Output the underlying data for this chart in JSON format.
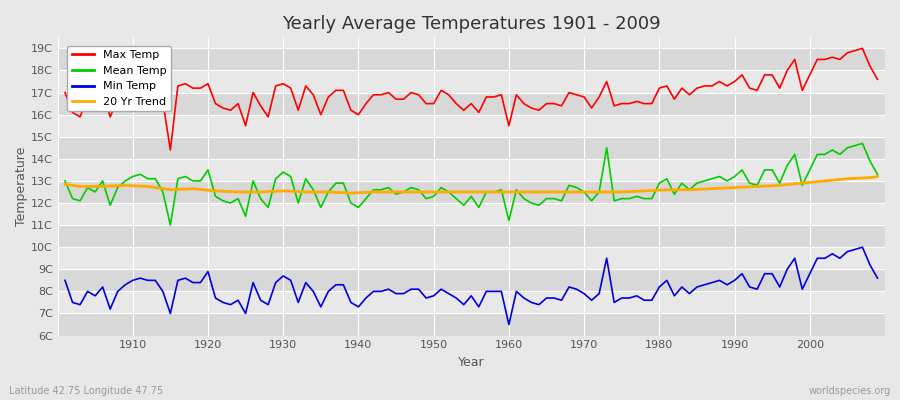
{
  "title": "Yearly Average Temperatures 1901 - 2009",
  "xlabel": "Year",
  "ylabel": "Temperature",
  "bottom_left_text": "Latitude 42.75 Longitude 47.75",
  "bottom_right_text": "worldspecies.org",
  "ylim": [
    6,
    19.5
  ],
  "yticks": [
    "6C",
    "7C",
    "8C",
    "9C",
    "10C",
    "11C",
    "12C",
    "13C",
    "14C",
    "15C",
    "16C",
    "17C",
    "18C",
    "19C"
  ],
  "ytick_vals": [
    6,
    7,
    8,
    9,
    10,
    11,
    12,
    13,
    14,
    15,
    16,
    17,
    18,
    19
  ],
  "xlim": [
    1900,
    2010
  ],
  "bg_color": "#e8e8e8",
  "plot_bg_outer": "#e8e8e8",
  "grid_color": "#ffffff",
  "band_colors": [
    "#d8d8d8",
    "#e8e8e8"
  ],
  "colors": {
    "max": "#ff0000",
    "mean": "#00cc00",
    "min": "#0000dd",
    "trend": "#ffaa00"
  },
  "legend": [
    {
      "label": "Max Temp",
      "color": "#ff0000"
    },
    {
      "label": "Mean Temp",
      "color": "#00cc00"
    },
    {
      "label": "Min Temp",
      "color": "#0000dd"
    },
    {
      "label": "20 Yr Trend",
      "color": "#ffaa00"
    }
  ],
  "years": [
    1901,
    1902,
    1903,
    1904,
    1905,
    1906,
    1907,
    1908,
    1909,
    1910,
    1911,
    1912,
    1913,
    1914,
    1915,
    1916,
    1917,
    1918,
    1919,
    1920,
    1921,
    1922,
    1923,
    1924,
    1925,
    1926,
    1927,
    1928,
    1929,
    1930,
    1931,
    1932,
    1933,
    1934,
    1935,
    1936,
    1937,
    1938,
    1939,
    1940,
    1941,
    1942,
    1943,
    1944,
    1945,
    1946,
    1947,
    1948,
    1949,
    1950,
    1951,
    1952,
    1953,
    1954,
    1955,
    1956,
    1957,
    1958,
    1959,
    1960,
    1961,
    1962,
    1963,
    1964,
    1965,
    1966,
    1967,
    1968,
    1969,
    1970,
    1971,
    1972,
    1973,
    1974,
    1975,
    1976,
    1977,
    1978,
    1979,
    1980,
    1981,
    1982,
    1983,
    1984,
    1985,
    1986,
    1987,
    1988,
    1989,
    1990,
    1991,
    1992,
    1993,
    1994,
    1995,
    1996,
    1997,
    1998,
    1999,
    2000,
    2001,
    2002,
    2003,
    2004,
    2005,
    2006,
    2007,
    2008,
    2009
  ],
  "max_temp": [
    17.0,
    16.1,
    15.9,
    16.8,
    16.6,
    17.0,
    15.9,
    16.7,
    17.2,
    17.4,
    17.5,
    17.2,
    17.2,
    16.6,
    14.4,
    17.3,
    17.4,
    17.2,
    17.2,
    17.4,
    16.5,
    16.3,
    16.2,
    16.5,
    15.5,
    17.0,
    16.4,
    15.9,
    17.3,
    17.4,
    17.2,
    16.2,
    17.3,
    16.9,
    16.0,
    16.8,
    17.1,
    17.1,
    16.2,
    16.0,
    16.5,
    16.9,
    16.9,
    17.0,
    16.7,
    16.7,
    17.0,
    16.9,
    16.5,
    16.5,
    17.1,
    16.9,
    16.5,
    16.2,
    16.5,
    16.1,
    16.8,
    16.8,
    16.9,
    15.5,
    16.9,
    16.5,
    16.3,
    16.2,
    16.5,
    16.5,
    16.4,
    17.0,
    16.9,
    16.8,
    16.3,
    16.8,
    17.5,
    16.4,
    16.5,
    16.5,
    16.6,
    16.5,
    16.5,
    17.2,
    17.3,
    16.7,
    17.2,
    16.9,
    17.2,
    17.3,
    17.3,
    17.5,
    17.3,
    17.5,
    17.8,
    17.2,
    17.1,
    17.8,
    17.8,
    17.2,
    18.0,
    18.5,
    17.1,
    17.8,
    18.5,
    18.5,
    18.6,
    18.5,
    18.8,
    18.9,
    19.0,
    18.2,
    17.6
  ],
  "mean_temp": [
    13.0,
    12.2,
    12.1,
    12.7,
    12.5,
    13.0,
    11.9,
    12.7,
    13.0,
    13.2,
    13.3,
    13.1,
    13.1,
    12.5,
    11.0,
    13.1,
    13.2,
    13.0,
    13.0,
    13.5,
    12.3,
    12.1,
    12.0,
    12.2,
    11.4,
    13.0,
    12.2,
    11.8,
    13.1,
    13.4,
    13.2,
    12.0,
    13.1,
    12.6,
    11.8,
    12.5,
    12.9,
    12.9,
    12.0,
    11.8,
    12.2,
    12.6,
    12.6,
    12.7,
    12.4,
    12.5,
    12.7,
    12.6,
    12.2,
    12.3,
    12.7,
    12.5,
    12.2,
    11.9,
    12.3,
    11.8,
    12.5,
    12.5,
    12.6,
    11.2,
    12.6,
    12.2,
    12.0,
    11.9,
    12.2,
    12.2,
    12.1,
    12.8,
    12.7,
    12.5,
    12.1,
    12.5,
    14.5,
    12.1,
    12.2,
    12.2,
    12.3,
    12.2,
    12.2,
    12.9,
    13.1,
    12.4,
    12.9,
    12.6,
    12.9,
    13.0,
    13.1,
    13.2,
    13.0,
    13.2,
    13.5,
    12.9,
    12.8,
    13.5,
    13.5,
    12.9,
    13.7,
    14.2,
    12.8,
    13.5,
    14.2,
    14.2,
    14.4,
    14.2,
    14.5,
    14.6,
    14.7,
    13.9,
    13.3
  ],
  "min_temp": [
    8.5,
    7.5,
    7.4,
    8.0,
    7.8,
    8.2,
    7.2,
    8.0,
    8.3,
    8.5,
    8.6,
    8.5,
    8.5,
    8.0,
    7.0,
    8.5,
    8.6,
    8.4,
    8.4,
    8.9,
    7.7,
    7.5,
    7.4,
    7.6,
    7.0,
    8.4,
    7.6,
    7.4,
    8.4,
    8.7,
    8.5,
    7.5,
    8.4,
    8.0,
    7.3,
    8.0,
    8.3,
    8.3,
    7.5,
    7.3,
    7.7,
    8.0,
    8.0,
    8.1,
    7.9,
    7.9,
    8.1,
    8.1,
    7.7,
    7.8,
    8.1,
    7.9,
    7.7,
    7.4,
    7.8,
    7.3,
    8.0,
    8.0,
    8.0,
    6.5,
    8.0,
    7.7,
    7.5,
    7.4,
    7.7,
    7.7,
    7.6,
    8.2,
    8.1,
    7.9,
    7.6,
    7.9,
    9.5,
    7.5,
    7.7,
    7.7,
    7.8,
    7.6,
    7.6,
    8.2,
    8.5,
    7.8,
    8.2,
    7.9,
    8.2,
    8.3,
    8.4,
    8.5,
    8.3,
    8.5,
    8.8,
    8.2,
    8.1,
    8.8,
    8.8,
    8.2,
    9.0,
    9.5,
    8.1,
    8.8,
    9.5,
    9.5,
    9.7,
    9.5,
    9.8,
    9.9,
    10.0,
    9.2,
    8.6
  ],
  "trend_years": [
    1901,
    1903,
    1906,
    1909,
    1912,
    1915,
    1918,
    1921,
    1924,
    1927,
    1930,
    1933,
    1936,
    1939,
    1942,
    1945,
    1948,
    1951,
    1954,
    1957,
    1960,
    1963,
    1966,
    1969,
    1972,
    1975,
    1978,
    1981,
    1984,
    1987,
    1990,
    1993,
    1996,
    1999,
    2002,
    2005,
    2008,
    2009
  ],
  "trend_vals": [
    12.85,
    12.75,
    12.75,
    12.8,
    12.75,
    12.6,
    12.65,
    12.55,
    12.5,
    12.5,
    12.55,
    12.5,
    12.5,
    12.45,
    12.5,
    12.5,
    12.5,
    12.5,
    12.5,
    12.5,
    12.5,
    12.5,
    12.5,
    12.5,
    12.5,
    12.5,
    12.55,
    12.6,
    12.6,
    12.65,
    12.7,
    12.75,
    12.8,
    12.9,
    13.0,
    13.1,
    13.15,
    13.2
  ]
}
